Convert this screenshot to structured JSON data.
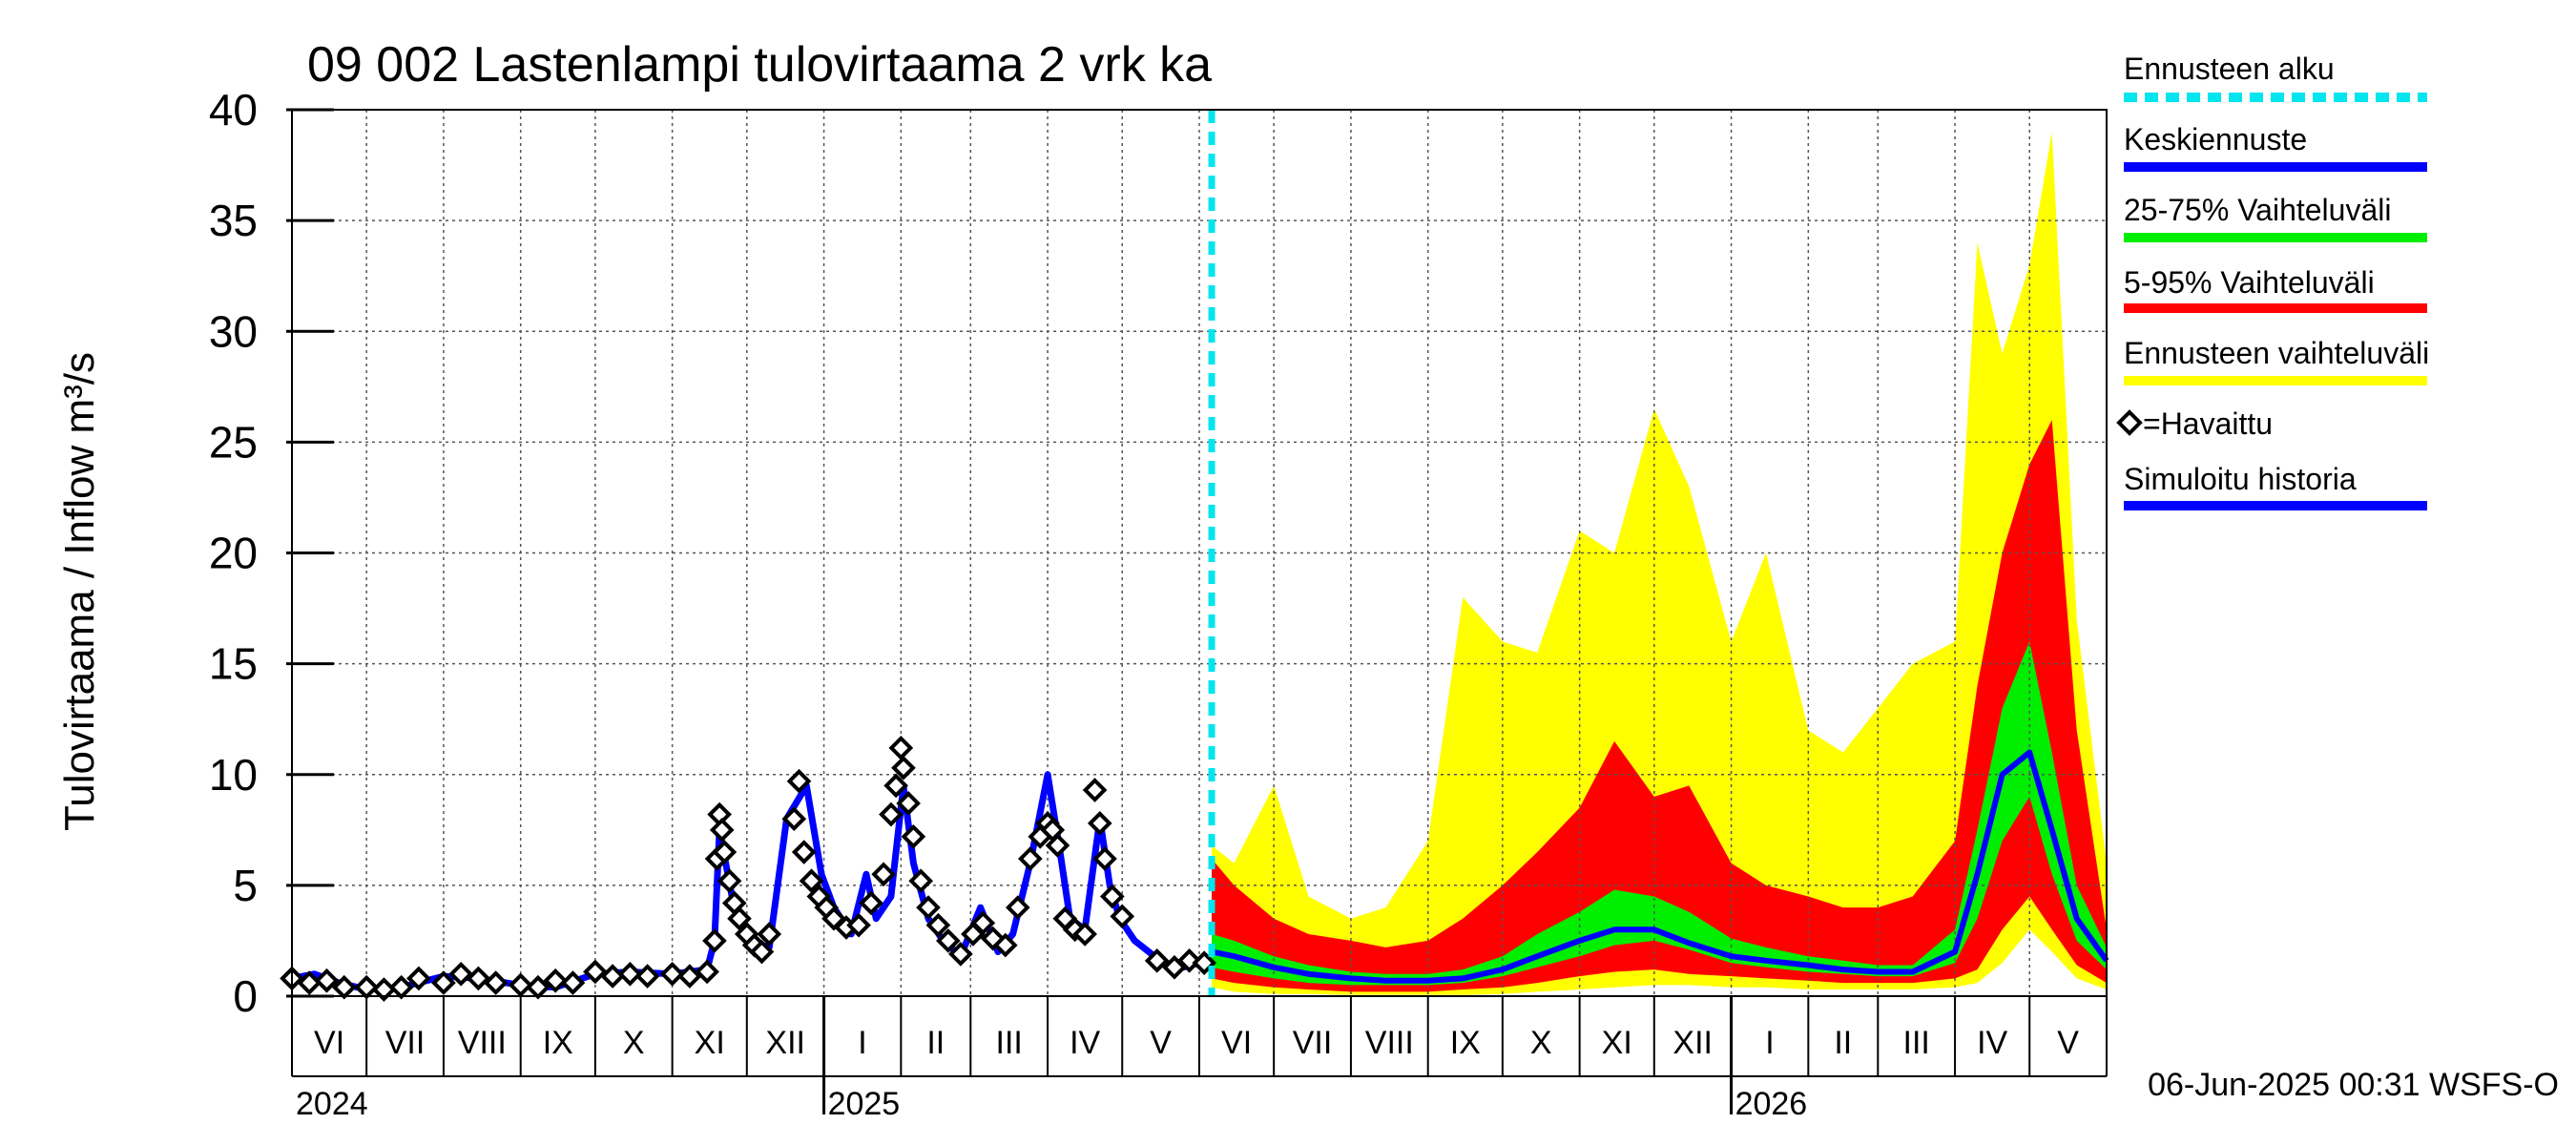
{
  "chart_data": {
    "type": "area",
    "title": "09 002 Lastenlampi tulovirtaama 2 vrk ka",
    "ylabel": "Tulovirtaama / Inflow    m³/s",
    "ylim": [
      0,
      40
    ],
    "yticks": [
      0,
      5,
      10,
      15,
      20,
      25,
      30,
      35,
      40
    ],
    "xlim": [
      "2024-06-01",
      "2026-06-01"
    ],
    "forecast_start": "2025-06-06",
    "grid": true,
    "legend_position": "right",
    "month_labels": [
      "VI",
      "VII",
      "VIII",
      "IX",
      "X",
      "XI",
      "XII",
      "I",
      "II",
      "III",
      "IV",
      "V",
      "VI",
      "VII",
      "VIII",
      "IX",
      "X",
      "XI",
      "XII",
      "I",
      "II",
      "III",
      "IV",
      "V"
    ],
    "year_labels": [
      {
        "label": "2024",
        "date": "2024-06-01"
      },
      {
        "label": "2025",
        "date": "2025-01-01"
      },
      {
        "label": "2026",
        "date": "2026-01-01"
      }
    ],
    "legend": [
      {
        "label": "Ennusteen alku",
        "color": "#00e5ee",
        "style": "dashed"
      },
      {
        "label": "Keskiennuste",
        "color": "#0000ff",
        "style": "line"
      },
      {
        "label": "25-75% Vaihteluväli",
        "color": "#00ee00",
        "style": "line"
      },
      {
        "label": "5-95% Vaihteluväli",
        "color": "#ff0000",
        "style": "line"
      },
      {
        "label": "Ennusteen vaihteluväli",
        "color": "#ffff00",
        "style": "line"
      },
      {
        "label": "=Havaittu",
        "color": "#000000",
        "style": "diamond"
      },
      {
        "label": "Simuloitu historia",
        "color": "#0000ff",
        "style": "line"
      }
    ],
    "footer": "06-Jun-2025 00:31 WSFS-O",
    "history": {
      "name": "Simuloitu historia",
      "x": [
        "2024-06-01",
        "2024-06-10",
        "2024-06-20",
        "2024-07-01",
        "2024-07-15",
        "2024-08-01",
        "2024-08-15",
        "2024-09-01",
        "2024-09-15",
        "2024-10-01",
        "2024-10-15",
        "2024-11-01",
        "2024-11-15",
        "2024-11-18",
        "2024-11-20",
        "2024-11-25",
        "2024-12-01",
        "2024-12-10",
        "2024-12-17",
        "2024-12-25",
        "2024-12-31",
        "2025-01-05",
        "2025-01-12",
        "2025-01-18",
        "2025-01-22",
        "2025-01-28",
        "2025-02-02",
        "2025-02-06",
        "2025-02-12",
        "2025-02-18",
        "2025-02-25",
        "2025-03-05",
        "2025-03-12",
        "2025-03-18",
        "2025-03-25",
        "2025-04-01",
        "2025-04-06",
        "2025-04-10",
        "2025-04-16",
        "2025-04-22",
        "2025-04-26",
        "2025-04-30",
        "2025-05-06",
        "2025-05-14",
        "2025-05-22",
        "2025-06-01",
        "2025-06-06"
      ],
      "y": [
        0.8,
        1.0,
        0.6,
        0.3,
        0.4,
        0.9,
        0.8,
        0.5,
        0.4,
        1.0,
        1.1,
        1.0,
        1.2,
        2.5,
        7.5,
        4.5,
        2.5,
        2.2,
        8.0,
        9.5,
        5.5,
        4.0,
        2.8,
        5.5,
        3.5,
        4.5,
        9.5,
        6.0,
        3.5,
        2.5,
        1.8,
        4.0,
        2.0,
        2.8,
        6.0,
        10.0,
        6.5,
        3.5,
        3.0,
        8.0,
        5.0,
        3.5,
        2.5,
        1.8,
        1.2,
        1.5,
        1.5
      ]
    },
    "observed": {
      "name": "=Havaittu",
      "x": [
        "2024-06-01",
        "2024-06-08",
        "2024-06-15",
        "2024-06-22",
        "2024-07-01",
        "2024-07-08",
        "2024-07-15",
        "2024-07-22",
        "2024-08-01",
        "2024-08-08",
        "2024-08-15",
        "2024-08-22",
        "2024-09-01",
        "2024-09-08",
        "2024-09-15",
        "2024-09-22",
        "2024-10-01",
        "2024-10-08",
        "2024-10-15",
        "2024-10-22",
        "2024-11-01",
        "2024-11-08",
        "2024-11-15",
        "2024-11-18",
        "2024-11-19",
        "2024-11-20",
        "2024-11-21",
        "2024-11-22",
        "2024-11-24",
        "2024-11-26",
        "2024-11-28",
        "2024-12-01",
        "2024-12-04",
        "2024-12-07",
        "2024-12-10",
        "2024-12-20",
        "2024-12-22",
        "2024-12-24",
        "2024-12-27",
        "2024-12-30",
        "2025-01-02",
        "2025-01-05",
        "2025-01-10",
        "2025-01-15",
        "2025-01-20",
        "2025-01-25",
        "2025-01-28",
        "2025-01-30",
        "2025-02-01",
        "2025-02-02",
        "2025-02-04",
        "2025-02-06",
        "2025-02-09",
        "2025-02-12",
        "2025-02-16",
        "2025-02-20",
        "2025-02-25",
        "2025-03-02",
        "2025-03-06",
        "2025-03-10",
        "2025-03-15",
        "2025-03-20",
        "2025-03-25",
        "2025-03-29",
        "2025-04-01",
        "2025-04-03",
        "2025-04-05",
        "2025-04-08",
        "2025-04-12",
        "2025-04-16",
        "2025-04-20",
        "2025-04-22",
        "2025-04-24",
        "2025-04-27",
        "2025-05-01",
        "2025-05-15",
        "2025-05-22",
        "2025-05-28",
        "2025-06-03"
      ],
      "y": [
        0.8,
        0.6,
        0.7,
        0.4,
        0.4,
        0.3,
        0.4,
        0.8,
        0.6,
        1.0,
        0.8,
        0.6,
        0.5,
        0.4,
        0.7,
        0.6,
        1.1,
        0.9,
        1.0,
        0.9,
        1.0,
        0.9,
        1.1,
        2.5,
        6.2,
        8.2,
        7.5,
        6.5,
        5.2,
        4.2,
        3.5,
        2.8,
        2.3,
        2.0,
        2.8,
        8.0,
        9.7,
        6.5,
        5.2,
        4.5,
        4.0,
        3.5,
        3.1,
        3.2,
        4.2,
        5.5,
        8.2,
        9.5,
        11.2,
        10.3,
        8.7,
        7.2,
        5.2,
        4.0,
        3.2,
        2.5,
        1.9,
        2.8,
        3.3,
        2.6,
        2.3,
        4.0,
        6.2,
        7.2,
        7.8,
        7.5,
        6.8,
        3.5,
        3.0,
        2.8,
        9.3,
        7.8,
        6.2,
        4.5,
        3.6,
        1.6,
        1.3,
        1.6,
        1.5
      ]
    },
    "forecast": {
      "x": [
        "2025-06-06",
        "2025-06-15",
        "2025-07-01",
        "2025-07-15",
        "2025-08-01",
        "2025-08-15",
        "2025-09-01",
        "2025-09-15",
        "2025-10-01",
        "2025-10-15",
        "2025-11-01",
        "2025-11-15",
        "2025-12-01",
        "2025-12-15",
        "2026-01-01",
        "2026-01-15",
        "2026-02-01",
        "2026-02-15",
        "2026-03-01",
        "2026-03-15",
        "2026-04-01",
        "2026-04-10",
        "2026-04-20",
        "2026-05-01",
        "2026-05-10",
        "2026-05-20",
        "2026-06-01"
      ],
      "min": [
        0.4,
        0.2,
        0.1,
        0.1,
        0.05,
        0.05,
        0.05,
        0.05,
        0.1,
        0.2,
        0.3,
        0.4,
        0.5,
        0.5,
        0.4,
        0.4,
        0.3,
        0.3,
        0.3,
        0.3,
        0.4,
        0.6,
        1.5,
        3.0,
        2.0,
        0.8,
        0.3
      ],
      "p5": [
        0.8,
        0.6,
        0.4,
        0.3,
        0.2,
        0.2,
        0.2,
        0.3,
        0.4,
        0.6,
        0.9,
        1.1,
        1.2,
        1.0,
        0.9,
        0.8,
        0.7,
        0.6,
        0.6,
        0.6,
        0.8,
        1.2,
        3.0,
        4.5,
        3.0,
        1.4,
        0.6
      ],
      "p25": [
        1.3,
        1.1,
        0.8,
        0.6,
        0.5,
        0.5,
        0.5,
        0.6,
        0.9,
        1.3,
        1.8,
        2.3,
        2.5,
        2.1,
        1.5,
        1.3,
        1.1,
        1.0,
        0.9,
        0.9,
        1.5,
        3.5,
        7.0,
        9.0,
        5.5,
        2.5,
        1.2
      ],
      "median": [
        2.0,
        1.8,
        1.3,
        1.0,
        0.8,
        0.7,
        0.7,
        0.8,
        1.2,
        1.8,
        2.5,
        3.0,
        3.0,
        2.4,
        1.8,
        1.6,
        1.4,
        1.2,
        1.1,
        1.1,
        2.0,
        5.5,
        10.0,
        11.0,
        7.5,
        3.5,
        1.6
      ],
      "p75": [
        2.8,
        2.5,
        1.8,
        1.4,
        1.1,
        1.0,
        1.0,
        1.2,
        1.8,
        2.8,
        3.8,
        4.8,
        4.5,
        3.8,
        2.6,
        2.2,
        1.8,
        1.6,
        1.4,
        1.4,
        3.0,
        7.5,
        13.0,
        16.0,
        11.0,
        5.0,
        2.2
      ],
      "p95": [
        6.2,
        5.0,
        3.5,
        2.8,
        2.5,
        2.2,
        2.5,
        3.5,
        5.0,
        6.5,
        8.5,
        11.5,
        9.0,
        9.5,
        6.0,
        5.0,
        4.5,
        4.0,
        4.0,
        4.5,
        7.0,
        14.0,
        20.0,
        24.0,
        26.0,
        12.0,
        3.0
      ],
      "max": [
        6.8,
        6.0,
        9.5,
        4.5,
        3.5,
        4.0,
        7.0,
        18.0,
        16.0,
        15.5,
        21.0,
        20.0,
        26.5,
        23.0,
        16.0,
        20.0,
        12.0,
        11.0,
        13.0,
        15.0,
        16.0,
        34.0,
        29.0,
        33.0,
        39.0,
        17.0,
        6.0
      ]
    }
  }
}
